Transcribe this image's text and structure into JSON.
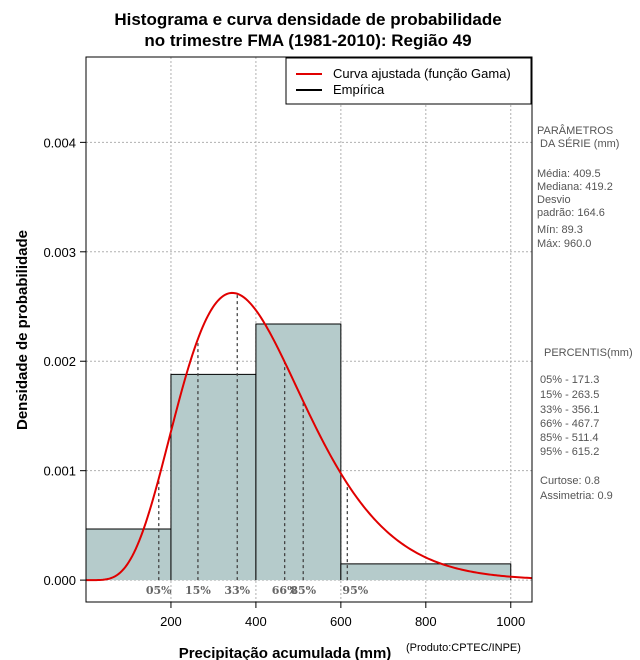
{
  "chart_data": {
    "type": "histogram",
    "title_line1": "Histograma e curva densidade de probabilidade",
    "title_line2": "no trimestre FMA (1981-2010): Região 49",
    "xlabel": "Precipitação acumulada (mm)",
    "ylabel": "Densidade de probabilidade",
    "credit": "(Produto:CPTEC/INPE)",
    "xlim": [
      0,
      1050
    ],
    "ylim": [
      -0.0002,
      0.00478
    ],
    "x_ticks": [
      200,
      400,
      600,
      800,
      1000
    ],
    "x_tick_labels": [
      "200",
      "400",
      "600",
      "800",
      "1000"
    ],
    "y_ticks": [
      0.0,
      0.001,
      0.002,
      0.003,
      0.004
    ],
    "y_tick_labels": [
      "0.000",
      "0.001",
      "0.002",
      "0.003",
      "0.004"
    ],
    "grid": true,
    "bars": [
      {
        "x0": 0,
        "x1": 200,
        "density": 0.000467
      },
      {
        "x0": 200,
        "x1": 400,
        "density": 0.00188
      },
      {
        "x0": 400,
        "x1": 600,
        "density": 0.00234
      },
      {
        "x0": 600,
        "x1": 1000,
        "density": 0.000148
      }
    ],
    "bar_color": "#b5cbcb",
    "curve": {
      "name": "Curva ajustada (função Gama)",
      "color": "#e00000",
      "distribution": "gamma",
      "shape": 6.3,
      "scale": 65.0,
      "x_range": [
        0,
        1050
      ]
    },
    "legend": [
      {
        "label": "Curva ajustada (função Gama)",
        "color": "#e00000"
      },
      {
        "label": "Empírica",
        "color": "#000000"
      }
    ],
    "legend_position": "top-right",
    "percentiles": [
      {
        "label": "05%",
        "value": 171.3
      },
      {
        "label": "15%",
        "value": 263.5
      },
      {
        "label": "33%",
        "value": 356.1
      },
      {
        "label": "66%",
        "value": 467.7
      },
      {
        "label": "85%",
        "value": 511.4
      },
      {
        "label": "95%",
        "value": 615.2
      }
    ]
  },
  "side_panel": {
    "params_title_1": "PARÂMETROS",
    "params_title_2": "DA SÉRIE (mm)",
    "media": "Média:  409.5",
    "mediana": "Mediana:  419.2",
    "desvio_1": "Desvio",
    "desvio_2": "padrão:  164.6",
    "min": "Mín:  89.3",
    "max": "Máx:   960.0",
    "percentis_title": "PERCENTIS(mm)",
    "p05": "05% -  171.3",
    "p15": "15% -  263.5",
    "p33": "33% -  356.1",
    "p66": "66% -  467.7",
    "p85": "85% -  511.4",
    "p95": "95% -  615.2",
    "curtose": "Curtose:  0.8",
    "assimetria": "Assimetria:  0.9"
  }
}
